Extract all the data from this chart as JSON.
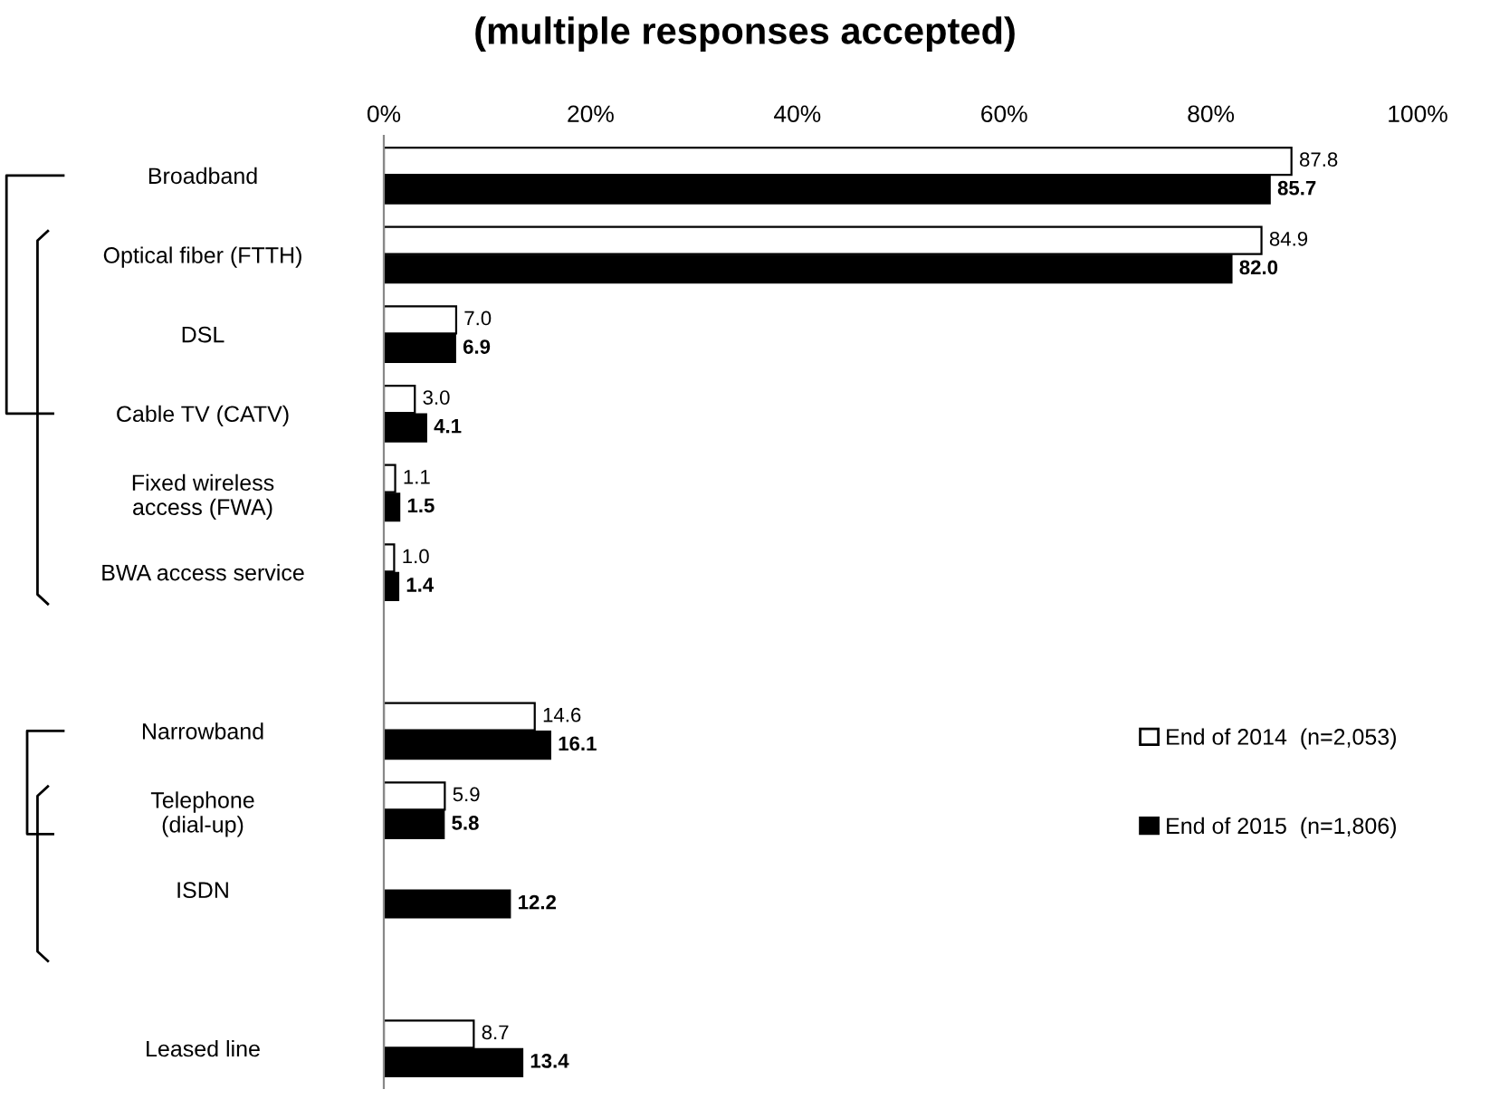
{
  "chart_data": {
    "type": "bar",
    "orientation": "horizontal",
    "title": "(multiple responses accepted)",
    "categories": [
      "Broadband",
      "Optical fiber (FTTH)",
      "DSL",
      "Cable TV (CATV)",
      "Fixed wireless\naccess (FWA)",
      "BWA access service",
      null,
      "Narrowband",
      "Telephone\n(dial-up)",
      "ISDN",
      null,
      "Leased line"
    ],
    "series": [
      {
        "name": "End of 2014  (n=2,053)",
        "color": "#ffffff",
        "values": [
          87.8,
          84.9,
          7.0,
          3.0,
          1.1,
          1.0,
          null,
          14.6,
          5.9,
          null,
          null,
          8.7
        ],
        "value_labels": [
          "87.8",
          "84.9",
          "7.0",
          "3.0",
          "1.1",
          "1.0",
          null,
          "14.6",
          "5.9",
          null,
          null,
          "8.7"
        ]
      },
      {
        "name": "End of 2015  (n=1,806)",
        "color": "#000000",
        "values": [
          85.7,
          82.0,
          6.9,
          4.1,
          1.5,
          1.4,
          null,
          16.1,
          5.8,
          12.2,
          null,
          13.4
        ],
        "value_labels": [
          "85.7",
          "82.0",
          "6.9",
          "4.1",
          "1.5",
          "1.4",
          null,
          "16.1",
          "5.8",
          "12.2",
          null,
          "13.4"
        ]
      }
    ],
    "xlim": [
      0,
      100
    ],
    "xticks": [
      {
        "value": 0,
        "label": "0%"
      },
      {
        "value": 20,
        "label": "20%"
      },
      {
        "value": 40,
        "label": "40%"
      },
      {
        "value": 60,
        "label": "60%"
      },
      {
        "value": 80,
        "label": "80%"
      },
      {
        "value": 100,
        "label": "100%"
      }
    ],
    "legend": "right",
    "grid": false
  }
}
